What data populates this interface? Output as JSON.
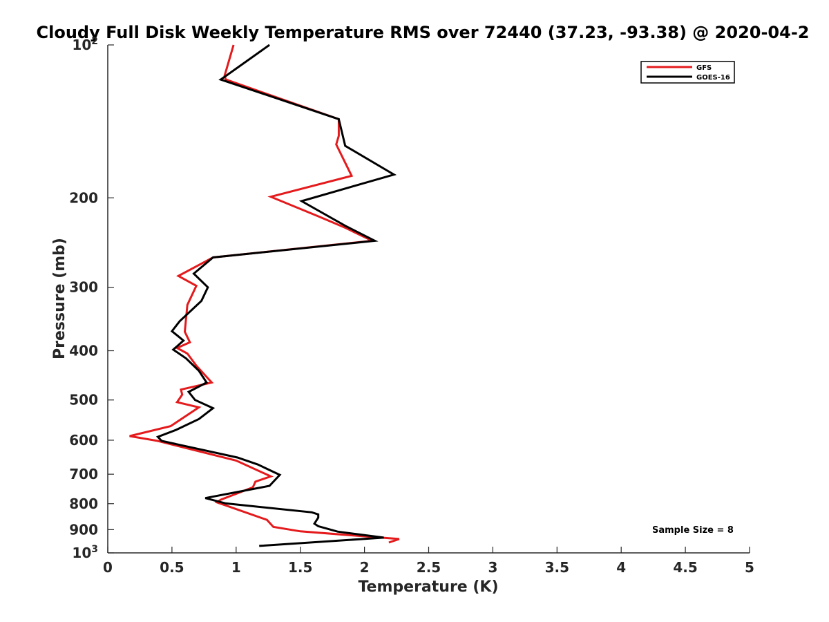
{
  "chart_data": {
    "type": "line",
    "title": "Cloudy Full Disk Weekly Temperature RMS over 72440 (37.23, -93.38) @ 2020-04-2",
    "xlabel": "Temperature (K)",
    "ylabel": "Pressure (mb)",
    "xlim": [
      0,
      5
    ],
    "ylim": [
      100,
      1000
    ],
    "yscale": "log",
    "y_reversed": true,
    "x_ticks": [
      "0",
      "0.5",
      "1",
      "1.5",
      "2",
      "2.5",
      "3",
      "3.5",
      "4",
      "4.5",
      "5"
    ],
    "y_ticks": [
      {
        "value": 100,
        "label": "10",
        "sup": "2"
      },
      {
        "value": 200,
        "label": "200"
      },
      {
        "value": 300,
        "label": "300"
      },
      {
        "value": 400,
        "label": "400"
      },
      {
        "value": 500,
        "label": "500"
      },
      {
        "value": 600,
        "label": "600"
      },
      {
        "value": 700,
        "label": "700"
      },
      {
        "value": 800,
        "label": "800"
      },
      {
        "value": 900,
        "label": "900"
      },
      {
        "value": 1000,
        "label": "10",
        "sup": "3"
      }
    ],
    "grid": false,
    "legend_position": "top-right",
    "sample_size_text": "Sample Size = 8",
    "series": [
      {
        "name": "GFS",
        "color": "#e41a1c",
        "points": [
          [
            0.98,
            100
          ],
          [
            0.91,
            115
          ],
          [
            0.92,
            117
          ],
          [
            1.8,
            140
          ],
          [
            1.8,
            151
          ],
          [
            1.78,
            157
          ],
          [
            1.9,
            181
          ],
          [
            1.27,
            199
          ],
          [
            1.65,
            218
          ],
          [
            1.85,
            229
          ],
          [
            2.06,
            243
          ],
          [
            0.82,
            262
          ],
          [
            0.55,
            285
          ],
          [
            0.69,
            298
          ],
          [
            0.62,
            325
          ],
          [
            0.6,
            367
          ],
          [
            0.64,
            385
          ],
          [
            0.54,
            395
          ],
          [
            0.62,
            405
          ],
          [
            0.69,
            428
          ],
          [
            0.81,
            462
          ],
          [
            0.57,
            477
          ],
          [
            0.58,
            488
          ],
          [
            0.54,
            505
          ],
          [
            0.71,
            517
          ],
          [
            0.49,
            563
          ],
          [
            0.17,
            589
          ],
          [
            0.39,
            602
          ],
          [
            1.0,
            658
          ],
          [
            1.27,
            707
          ],
          [
            1.15,
            724
          ],
          [
            1.13,
            743
          ],
          [
            0.88,
            786
          ],
          [
            0.85,
            795
          ],
          [
            1.24,
            861
          ],
          [
            1.29,
            889
          ],
          [
            1.5,
            907
          ],
          [
            2.27,
            939
          ],
          [
            2.19,
            954
          ]
        ]
      },
      {
        "name": "GOES-16",
        "color": "#000000",
        "points": [
          [
            1.26,
            100
          ],
          [
            0.88,
            117
          ],
          [
            1.8,
            140
          ],
          [
            1.85,
            158
          ],
          [
            2.23,
            180
          ],
          [
            1.51,
            203
          ],
          [
            1.85,
            227
          ],
          [
            2.08,
            243
          ],
          [
            0.82,
            262
          ],
          [
            0.67,
            282
          ],
          [
            0.78,
            300
          ],
          [
            0.73,
            319
          ],
          [
            0.56,
            350
          ],
          [
            0.5,
            366
          ],
          [
            0.59,
            382
          ],
          [
            0.51,
            398
          ],
          [
            0.61,
            414
          ],
          [
            0.71,
            438
          ],
          [
            0.77,
            462
          ],
          [
            0.63,
            482
          ],
          [
            0.68,
            500
          ],
          [
            0.82,
            519
          ],
          [
            0.71,
            545
          ],
          [
            0.53,
            573
          ],
          [
            0.39,
            591
          ],
          [
            0.42,
            602
          ],
          [
            1.01,
            649
          ],
          [
            1.17,
            670
          ],
          [
            1.34,
            702
          ],
          [
            1.26,
            738
          ],
          [
            0.76,
            780
          ],
          [
            0.92,
            799
          ],
          [
            1.59,
            832
          ],
          [
            1.64,
            840
          ],
          [
            1.64,
            852
          ],
          [
            1.61,
            876
          ],
          [
            1.64,
            886
          ],
          [
            1.79,
            908
          ],
          [
            2.15,
            933
          ],
          [
            1.18,
            969
          ]
        ]
      }
    ]
  }
}
